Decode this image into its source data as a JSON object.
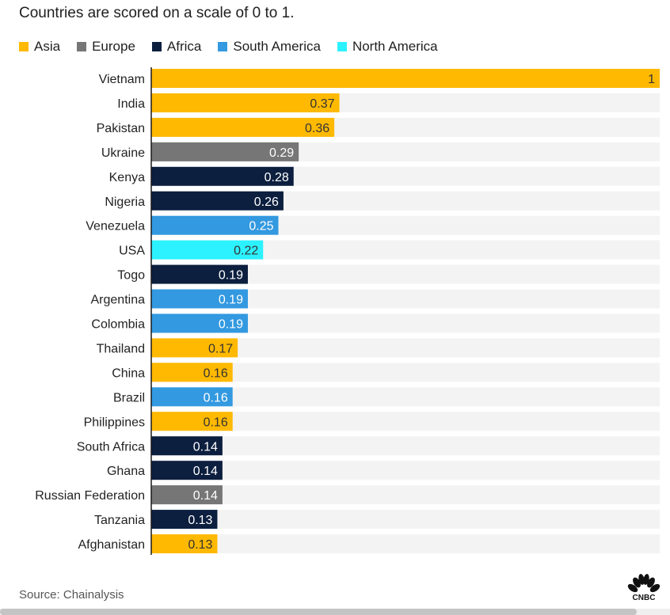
{
  "subtitle": "Countries are scored on a scale of 0 to 1.",
  "legend": [
    {
      "label": "Asia",
      "color": "#ffb900"
    },
    {
      "label": "Europe",
      "color": "#767676"
    },
    {
      "label": "Africa",
      "color": "#0d1f3f"
    },
    {
      "label": "South America",
      "color": "#3399e0"
    },
    {
      "label": "North America",
      "color": "#2cf2ff"
    }
  ],
  "source": "Source: Chainalysis",
  "logo": {
    "text": "CNBC",
    "icon": "nbc-peacock-icon"
  },
  "colors": {
    "track": "#f3f3f3",
    "axis": "#1a1a1a",
    "label_light": "#ffffff",
    "label_dark": "#333333"
  },
  "chart_data": {
    "type": "bar",
    "orientation": "horizontal",
    "xlim": [
      0,
      1
    ],
    "categories": [
      "Vietnam",
      "India",
      "Pakistan",
      "Ukraine",
      "Kenya",
      "Nigeria",
      "Venezuela",
      "USA",
      "Togo",
      "Argentina",
      "Colombia",
      "Thailand",
      "China",
      "Brazil",
      "Philippines",
      "South Africa",
      "Ghana",
      "Russian Federation",
      "Tanzania",
      "Afghanistan"
    ],
    "values": [
      1,
      0.37,
      0.36,
      0.29,
      0.28,
      0.26,
      0.25,
      0.22,
      0.19,
      0.19,
      0.19,
      0.17,
      0.16,
      0.16,
      0.16,
      0.14,
      0.14,
      0.14,
      0.13,
      0.13
    ],
    "labels": [
      "1",
      "0.37",
      "0.36",
      "0.29",
      "0.28",
      "0.26",
      "0.25",
      "0.22",
      "0.19",
      "0.19",
      "0.19",
      "0.17",
      "0.16",
      "0.16",
      "0.16",
      "0.14",
      "0.14",
      "0.14",
      "0.13",
      "0.13"
    ],
    "regions": [
      "Asia",
      "Asia",
      "Asia",
      "Europe",
      "Africa",
      "Africa",
      "South America",
      "North America",
      "Africa",
      "South America",
      "South America",
      "Asia",
      "Asia",
      "South America",
      "Asia",
      "Africa",
      "Africa",
      "Europe",
      "Africa",
      "Asia"
    ],
    "grid": false,
    "legend_position": "top-left"
  }
}
